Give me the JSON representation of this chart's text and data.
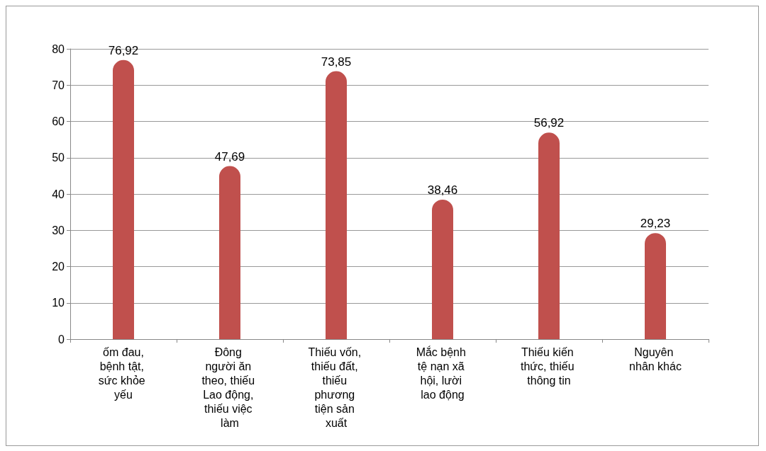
{
  "chart_data": {
    "type": "bar",
    "categories": [
      "ốm đau,bệnh tật, sức khỏe yếu",
      "Đông người ăn theo, thiếu Lao động, thiếu việc làm",
      "Thiếu vốn, thiếu đất, thiếu phương tiện sản xuất",
      "Mắc bệnh tệ nạn xã hội, lười lao động",
      "Thiếu kiến thức, thiếu thông tin",
      "Nguyên nhân khác"
    ],
    "values": [
      76.92,
      47.69,
      73.85,
      38.46,
      56.92,
      29.23
    ],
    "value_labels": [
      "76,92",
      "47,69",
      "73,85",
      "38,46",
      "56,92",
      "29,23"
    ],
    "color": "#c0504d",
    "ylim": [
      0,
      80
    ],
    "yticks": [
      0,
      10,
      20,
      30,
      40,
      50,
      60,
      70,
      80
    ],
    "grid": "y"
  }
}
